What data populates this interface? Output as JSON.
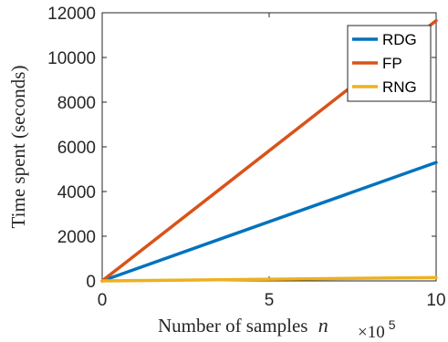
{
  "chart_data": {
    "type": "line",
    "xlabel": "Number of samples",
    "xlabel_var": "n",
    "ylabel": "Time spent  (seconds)",
    "x_exponent_base": "×10",
    "x_exponent_power": "5",
    "xlim": [
      0,
      10
    ],
    "ylim": [
      0,
      12000
    ],
    "x_ticks": [
      0,
      5,
      10
    ],
    "y_ticks": [
      0,
      2000,
      4000,
      6000,
      8000,
      10000,
      12000
    ],
    "x_tick_labels": [
      "0",
      "5",
      "10"
    ],
    "y_tick_labels": [
      "0",
      "2000",
      "4000",
      "6000",
      "8000",
      "10000",
      "12000"
    ],
    "grid": false,
    "legend_position": "top-right",
    "series": [
      {
        "name": "RDG",
        "color": "#0072BD",
        "x": [
          0,
          10
        ],
        "y": [
          0,
          5300
        ]
      },
      {
        "name": "FP",
        "color": "#D95319",
        "x": [
          0,
          10
        ],
        "y": [
          0,
          11650
        ]
      },
      {
        "name": "RNG",
        "color": "#EDB120",
        "x": [
          0,
          10
        ],
        "y": [
          0,
          150
        ]
      }
    ]
  }
}
